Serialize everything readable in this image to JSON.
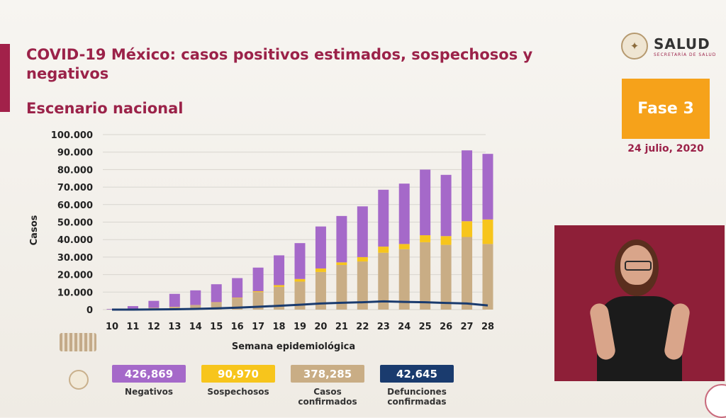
{
  "header": {
    "title": "COVID-19 México: casos positivos estimados, sospechosos y negativos",
    "subtitle": "Escenario nacional",
    "logo_text": "SALUD",
    "logo_subtext": "SECRETARÍA DE SALUD"
  },
  "phase": {
    "label": "Fase 3",
    "date": "24 julio, 2020"
  },
  "legend": [
    {
      "value": "426,869",
      "label": "Negativos",
      "color": "#a569c9"
    },
    {
      "value": "90,970",
      "label": "Sospechosos",
      "color": "#f7c51c"
    },
    {
      "value": "378,285",
      "label": "Casos confirmados",
      "color": "#c9ad85"
    },
    {
      "value": "42,645",
      "label": "Defunciones confirmadas",
      "color": "#1a3b6e"
    }
  ],
  "chart_data": {
    "type": "bar",
    "stacked": true,
    "xlabel": "Semana epidemiológica",
    "ylabel": "Casos",
    "ylim": [
      0,
      100000
    ],
    "y_ticks": [
      "0",
      "10.000",
      "20.000",
      "30.000",
      "40.000",
      "50.000",
      "60.000",
      "70.000",
      "80.000",
      "90.000",
      "100.000"
    ],
    "grid": true,
    "categories": [
      "10",
      "11",
      "12",
      "13",
      "14",
      "15",
      "16",
      "17",
      "18",
      "19",
      "20",
      "21",
      "22",
      "23",
      "24",
      "25",
      "26",
      "27",
      "28"
    ],
    "series": [
      {
        "name": "Casos confirmados",
        "color": "#c9ad85",
        "values": [
          100,
          400,
          900,
          1500,
          2500,
          4000,
          6500,
          10000,
          13000,
          16000,
          21500,
          25500,
          27500,
          32500,
          34500,
          38500,
          37000,
          41500,
          37500
        ]
      },
      {
        "name": "Sospechosos",
        "color": "#f7c51c",
        "values": [
          0,
          0,
          100,
          100,
          100,
          200,
          300,
          500,
          1000,
          1500,
          2000,
          1500,
          2500,
          3500,
          3000,
          4000,
          5000,
          9000,
          14000
        ]
      },
      {
        "name": "Negativos",
        "color": "#a569c9",
        "values": [
          300,
          1600,
          4000,
          7400,
          8400,
          10300,
          11200,
          13500,
          17000,
          20500,
          24000,
          26500,
          29000,
          32500,
          34500,
          37500,
          35000,
          40500,
          37500
        ]
      }
    ],
    "line_series": {
      "name": "Defunciones confirmadas",
      "color": "#1a3b6e",
      "values": [
        0,
        20,
        80,
        200,
        400,
        700,
        1100,
        1600,
        2200,
        2800,
        3500,
        3900,
        4200,
        4700,
        4400,
        4200,
        3800,
        3500,
        2400
      ]
    }
  }
}
